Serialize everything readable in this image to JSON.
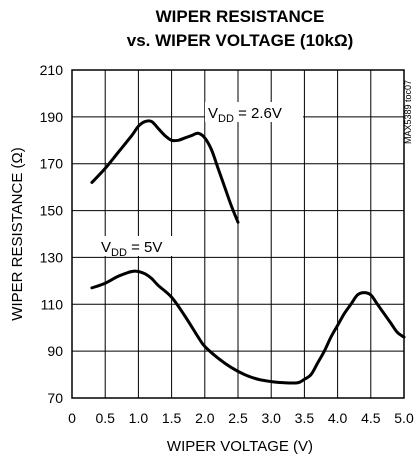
{
  "chart_data": {
    "type": "line",
    "title_line1": "WIPER RESISTANCE",
    "title_line2": "vs. WIPER VOLTAGE (10kΩ)",
    "xlabel": "WIPER VOLTAGE (V)",
    "ylabel": "WIPER RESISTANCE (Ω)",
    "xlim": [
      0,
      5.0
    ],
    "ylim": [
      70,
      210
    ],
    "xticks": [
      0,
      0.5,
      1.0,
      1.5,
      2.0,
      2.5,
      3.0,
      3.5,
      4.0,
      4.5,
      5.0
    ],
    "xtick_labels": [
      "0",
      "0.5",
      "1.0",
      "1.5",
      "2.0",
      "2.5",
      "3.0",
      "3.5",
      "4.0",
      "4.5",
      "5.0"
    ],
    "yticks": [
      70,
      90,
      110,
      130,
      150,
      170,
      190,
      210
    ],
    "ytick_labels": [
      "70",
      "90",
      "110",
      "130",
      "150",
      "170",
      "190",
      "210"
    ],
    "grid": true,
    "side_code": "MAX5389 toc07",
    "series": [
      {
        "name_main": "V",
        "name_sub": "DD",
        "name_rest": " = 2.6V",
        "x": [
          0.3,
          0.5,
          0.7,
          0.9,
          1.0,
          1.1,
          1.2,
          1.3,
          1.4,
          1.5,
          1.6,
          1.7,
          1.8,
          1.9,
          2.0,
          2.1,
          2.2,
          2.3,
          2.4,
          2.5
        ],
        "y": [
          162,
          168,
          175,
          182,
          186,
          188,
          188,
          185,
          182,
          180,
          180,
          181,
          182,
          183,
          181,
          176,
          168,
          160,
          152,
          145
        ]
      },
      {
        "name_main": "V",
        "name_sub": "DD",
        "name_rest": " = 5V",
        "x": [
          0.3,
          0.5,
          0.7,
          0.9,
          1.0,
          1.1,
          1.2,
          1.3,
          1.5,
          1.7,
          1.9,
          2.0,
          2.2,
          2.4,
          2.6,
          2.8,
          3.0,
          3.2,
          3.4,
          3.5,
          3.6,
          3.7,
          3.8,
          3.9,
          4.0,
          4.1,
          4.2,
          4.3,
          4.4,
          4.5,
          4.6,
          4.7,
          4.8,
          4.9,
          5.0
        ],
        "y": [
          117,
          119,
          122,
          124,
          124,
          123,
          121,
          118,
          113,
          105,
          96,
          92,
          87,
          83,
          80,
          78,
          77,
          76.5,
          76.5,
          78,
          80,
          85,
          90,
          96,
          101,
          106,
          110,
          114,
          115,
          114,
          110,
          106,
          102,
          98,
          96
        ]
      }
    ]
  }
}
